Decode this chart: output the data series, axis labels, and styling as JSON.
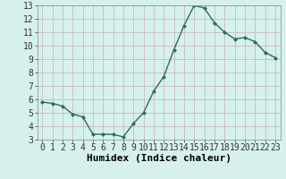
{
  "x": [
    0,
    1,
    2,
    3,
    4,
    5,
    6,
    7,
    8,
    9,
    10,
    11,
    12,
    13,
    14,
    15,
    16,
    17,
    18,
    19,
    20,
    21,
    22,
    23
  ],
  "y": [
    5.8,
    5.7,
    5.5,
    4.9,
    4.7,
    3.4,
    3.4,
    3.4,
    3.2,
    4.2,
    5.0,
    6.6,
    7.7,
    9.7,
    11.5,
    13.0,
    12.8,
    11.7,
    11.0,
    10.5,
    10.6,
    10.3,
    9.5,
    9.1
  ],
  "xlabel": "Humidex (Indice chaleur)",
  "ylim": [
    3,
    13
  ],
  "xlim": [
    -0.5,
    23.5
  ],
  "yticks": [
    3,
    4,
    5,
    6,
    7,
    8,
    9,
    10,
    11,
    12,
    13
  ],
  "xticks": [
    0,
    1,
    2,
    3,
    4,
    5,
    6,
    7,
    8,
    9,
    10,
    11,
    12,
    13,
    14,
    15,
    16,
    17,
    18,
    19,
    20,
    21,
    22,
    23
  ],
  "line_color": "#2e6b5e",
  "marker": "D",
  "marker_size": 2.0,
  "bg_color": "#d6f0ee",
  "grid_color": "#c8b8c0",
  "xlabel_fontsize": 8,
  "tick_fontsize": 7,
  "linewidth": 1.0
}
